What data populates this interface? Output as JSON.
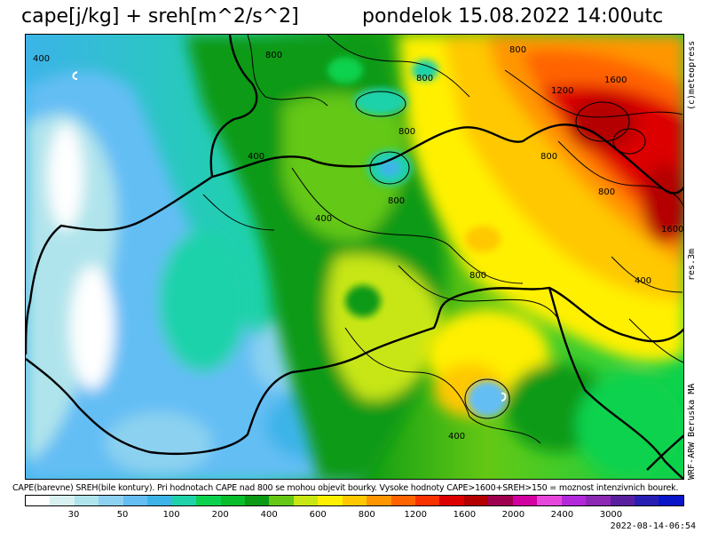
{
  "title": {
    "left": "cape[j/kg] + sreh[m^2/s^2]",
    "right": "pondelok 15.08.2022 14:00utc"
  },
  "side_labels": {
    "publisher": "(c)meteopress",
    "resolution": "res.3m",
    "model": "WRF-ARW Beruska MA"
  },
  "footnote": "CAPE(barevne) SREH(bile kontury). Pri hodnotach CAPE nad 800 se mohou objevit bourky. Vysoke hodnoty CAPE>1600+SREH>150 = moznost intenzivnich bourek.",
  "timestamp": "2022-08-14-06:54",
  "colorbar": {
    "colors": [
      "#ffffff",
      "#d8f0f0",
      "#b0e4ec",
      "#8cd2f0",
      "#64bef4",
      "#3cb4e8",
      "#1ed2aa",
      "#0ad24e",
      "#08be2a",
      "#0a9a14",
      "#64c814",
      "#c8e614",
      "#fff000",
      "#ffc800",
      "#ff9600",
      "#ff6400",
      "#fa3200",
      "#dc0000",
      "#b40000",
      "#a00050",
      "#d200a0",
      "#e646dc",
      "#b428dc",
      "#8c28b4",
      "#5a1ea0",
      "#281eb4",
      "#0a14c8"
    ],
    "labels": [
      {
        "text": "30",
        "index": 2
      },
      {
        "text": "50",
        "index": 4
      },
      {
        "text": "100",
        "index": 6
      },
      {
        "text": "200",
        "index": 8
      },
      {
        "text": "400",
        "index": 10
      },
      {
        "text": "600",
        "index": 12
      },
      {
        "text": "800",
        "index": 14
      },
      {
        "text": "1200",
        "index": 16
      },
      {
        "text": "1600",
        "index": 18
      },
      {
        "text": "2000",
        "index": 20
      },
      {
        "text": "2400",
        "index": 22
      },
      {
        "text": "3000",
        "index": 24
      }
    ]
  },
  "map": {
    "contour_labels": [
      "400",
      "800",
      "800",
      "800",
      "800",
      "1200",
      "1600",
      "800",
      "400",
      "800",
      "400",
      "800",
      "1600",
      "400",
      "400",
      "800"
    ]
  }
}
